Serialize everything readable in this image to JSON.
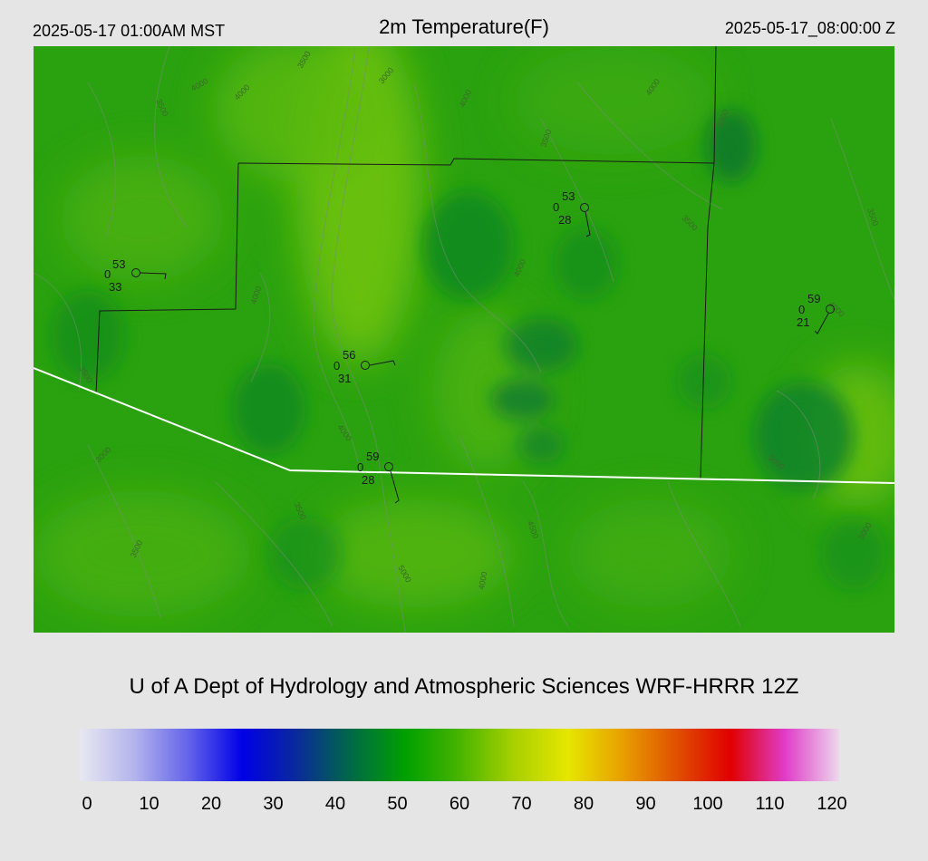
{
  "header": {
    "local_time": "2025-05-17 01:00AM MST",
    "title": "2m Temperature(F)",
    "valid_time": "2025-05-17_08:00:00 Z"
  },
  "credit": "U of A Dept of Hydrology and Atmospheric Sciences WRF-HRRR 12Z",
  "colorbar": {
    "ticks": [
      "0",
      "10",
      "20",
      "30",
      "40",
      "50",
      "60",
      "70",
      "80",
      "90",
      "100",
      "110",
      "120"
    ],
    "colors": [
      "#e8e8f2",
      "#b4b4ec",
      "#6464ea",
      "#0000e6",
      "#0a2a9a",
      "#006a46",
      "#00a000",
      "#48b400",
      "#a8d000",
      "#e6e600",
      "#e8a000",
      "#e05000",
      "#e00000",
      "#e03cc8",
      "#ecd8ec"
    ]
  },
  "stations": [
    {
      "temp": "53",
      "cloud": "0",
      "dew": "33"
    },
    {
      "temp": "53",
      "cloud": "0",
      "dew": "28"
    },
    {
      "temp": "59",
      "cloud": "0",
      "dew": "21"
    },
    {
      "temp": "56",
      "cloud": "0",
      "dew": "31"
    },
    {
      "temp": "59",
      "cloud": "0",
      "dew": "28"
    }
  ],
  "contour_labels": [
    "3500",
    "4000",
    "4000",
    "3500",
    "3000",
    "4000",
    "5000",
    "4000",
    "3500",
    "4000",
    "3500",
    "4000",
    "5000",
    "3500",
    "3500",
    "4000",
    "3000",
    "4000",
    "3500",
    "4500",
    "3500",
    "5000",
    "4000",
    "3000"
  ]
}
